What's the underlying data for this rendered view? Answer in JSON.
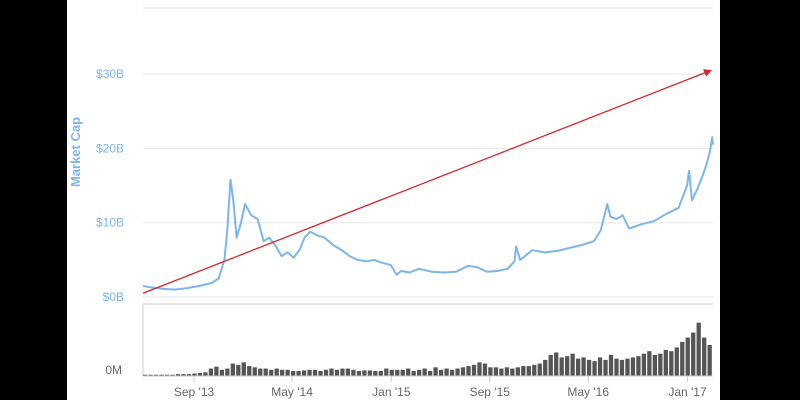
{
  "chart_data": {
    "type": "line",
    "title": "",
    "ylabel": "Market Cap",
    "xlabel": "",
    "x_ticks": [
      "Sep '13",
      "May '14",
      "Jan '15",
      "Sep '15",
      "May '16",
      "Jan '17"
    ],
    "y_ticks": [
      "$0B",
      "$10B",
      "$20B",
      "$30B"
    ],
    "ylim": [
      0,
      40
    ],
    "xlim": [
      "2013-04-28",
      "2017-03-05"
    ],
    "grid": true,
    "colors": {
      "line": "#7cb5ec",
      "trend": "#d62728",
      "volume": "#555555",
      "grid": "#e6e6e6"
    },
    "series": [
      {
        "values": [
          [
            "2013-04-28",
            1.5
          ],
          [
            "2013-05-15",
            1.3
          ],
          [
            "2013-06-15",
            1.1
          ],
          [
            "2013-07-15",
            1.0
          ],
          [
            "2013-08-15",
            1.2
          ],
          [
            "2013-09-15",
            1.5
          ],
          [
            "2013-10-15",
            1.9
          ],
          [
            "2013-11-01",
            2.5
          ],
          [
            "2013-11-15",
            5.0
          ],
          [
            "2013-11-22",
            9.0
          ],
          [
            "2013-11-30",
            15.8
          ],
          [
            "2013-12-07",
            13.0
          ],
          [
            "2013-12-15",
            8.0
          ],
          [
            "2013-12-25",
            9.8
          ],
          [
            "2014-01-05",
            12.5
          ],
          [
            "2014-01-20",
            11.0
          ],
          [
            "2014-02-05",
            10.5
          ],
          [
            "2014-02-20",
            7.5
          ],
          [
            "2014-03-05",
            8.0
          ],
          [
            "2014-03-20",
            7.0
          ],
          [
            "2014-04-05",
            5.5
          ],
          [
            "2014-04-20",
            6.0
          ],
          [
            "2014-05-05",
            5.3
          ],
          [
            "2014-05-20",
            6.4
          ],
          [
            "2014-06-01",
            8.0
          ],
          [
            "2014-06-15",
            8.8
          ],
          [
            "2014-07-01",
            8.3
          ],
          [
            "2014-07-20",
            8.0
          ],
          [
            "2014-08-10",
            7.0
          ],
          [
            "2014-09-01",
            6.3
          ],
          [
            "2014-09-20",
            5.5
          ],
          [
            "2014-10-10",
            5.0
          ],
          [
            "2014-11-01",
            4.8
          ],
          [
            "2014-11-20",
            5.0
          ],
          [
            "2014-12-10",
            4.6
          ],
          [
            "2014-12-31",
            4.3
          ],
          [
            "2015-01-14",
            3.0
          ],
          [
            "2015-01-25",
            3.5
          ],
          [
            "2015-02-15",
            3.3
          ],
          [
            "2015-03-10",
            3.8
          ],
          [
            "2015-04-10",
            3.4
          ],
          [
            "2015-05-10",
            3.3
          ],
          [
            "2015-06-10",
            3.4
          ],
          [
            "2015-07-10",
            4.2
          ],
          [
            "2015-08-01",
            4.0
          ],
          [
            "2015-08-25",
            3.4
          ],
          [
            "2015-09-20",
            3.5
          ],
          [
            "2015-10-15",
            3.8
          ],
          [
            "2015-11-01",
            4.8
          ],
          [
            "2015-11-05",
            6.8
          ],
          [
            "2015-11-15",
            5.0
          ],
          [
            "2015-12-15",
            6.3
          ],
          [
            "2016-01-15",
            6.0
          ],
          [
            "2016-02-15",
            6.2
          ],
          [
            "2016-03-15",
            6.6
          ],
          [
            "2016-04-15",
            7.0
          ],
          [
            "2016-05-15",
            7.5
          ],
          [
            "2016-06-01",
            9.0
          ],
          [
            "2016-06-17",
            12.5
          ],
          [
            "2016-06-25",
            10.8
          ],
          [
            "2016-07-10",
            10.5
          ],
          [
            "2016-07-25",
            11.0
          ],
          [
            "2016-08-10",
            9.2
          ],
          [
            "2016-09-10",
            9.8
          ],
          [
            "2016-10-10",
            10.2
          ],
          [
            "2016-11-10",
            11.2
          ],
          [
            "2016-12-10",
            12.0
          ],
          [
            "2016-12-31",
            15.0
          ],
          [
            "2017-01-05",
            17.0
          ],
          [
            "2017-01-12",
            13.0
          ],
          [
            "2017-01-25",
            14.5
          ],
          [
            "2017-02-05",
            16.0
          ],
          [
            "2017-02-15",
            17.5
          ],
          [
            "2017-02-25",
            19.5
          ],
          [
            "2017-03-03",
            21.5
          ],
          [
            "2017-03-05",
            20.5
          ]
        ]
      }
    ],
    "trend_line": {
      "from": [
        "2013-04-28",
        0.5
      ],
      "to": [
        "2017-03-05",
        30.5
      ]
    },
    "volume": {
      "y_tick": "0M",
      "values": [
        0.02,
        0.02,
        0.02,
        0.02,
        0.02,
        0.02,
        0.03,
        0.03,
        0.03,
        0.04,
        0.05,
        0.06,
        0.12,
        0.15,
        0.1,
        0.12,
        0.2,
        0.18,
        0.22,
        0.16,
        0.14,
        0.12,
        0.12,
        0.1,
        0.12,
        0.1,
        0.1,
        0.08,
        0.08,
        0.09,
        0.1,
        0.1,
        0.08,
        0.1,
        0.12,
        0.1,
        0.12,
        0.12,
        0.1,
        0.08,
        0.09,
        0.09,
        0.08,
        0.08,
        0.12,
        0.1,
        0.1,
        0.1,
        0.12,
        0.08,
        0.1,
        0.12,
        0.08,
        0.14,
        0.1,
        0.12,
        0.1,
        0.12,
        0.14,
        0.16,
        0.18,
        0.22,
        0.2,
        0.14,
        0.14,
        0.12,
        0.14,
        0.12,
        0.14,
        0.16,
        0.16,
        0.18,
        0.2,
        0.26,
        0.34,
        0.38,
        0.3,
        0.32,
        0.36,
        0.28,
        0.3,
        0.26,
        0.24,
        0.3,
        0.26,
        0.34,
        0.28,
        0.26,
        0.28,
        0.3,
        0.32,
        0.36,
        0.4,
        0.34,
        0.36,
        0.42,
        0.4,
        0.46,
        0.55,
        0.62,
        0.7,
        0.86,
        0.62,
        0.5
      ]
    }
  }
}
